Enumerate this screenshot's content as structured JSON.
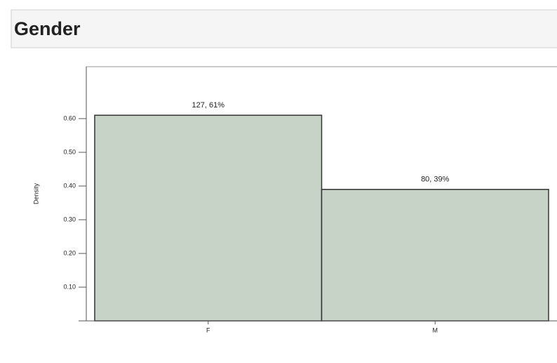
{
  "header": {
    "title": "Gender"
  },
  "chart_data": {
    "type": "bar",
    "y_label": "Density",
    "categories": [
      "F",
      "M"
    ],
    "values": [
      0.61,
      0.39
    ],
    "value_labels": [
      "127, 61%",
      "80, 39%"
    ],
    "color": "#c8d3c8",
    "ylim": [
      0,
      0.754
    ],
    "yticks": [
      {
        "value": 0.1,
        "label": "0.10"
      },
      {
        "value": 0.2,
        "label": "0.20"
      },
      {
        "value": 0.3,
        "label": "0.30"
      },
      {
        "value": 0.4,
        "label": "0.40"
      },
      {
        "value": 0.5,
        "label": "0.50"
      },
      {
        "value": 0.6,
        "label": "0.60"
      }
    ]
  }
}
